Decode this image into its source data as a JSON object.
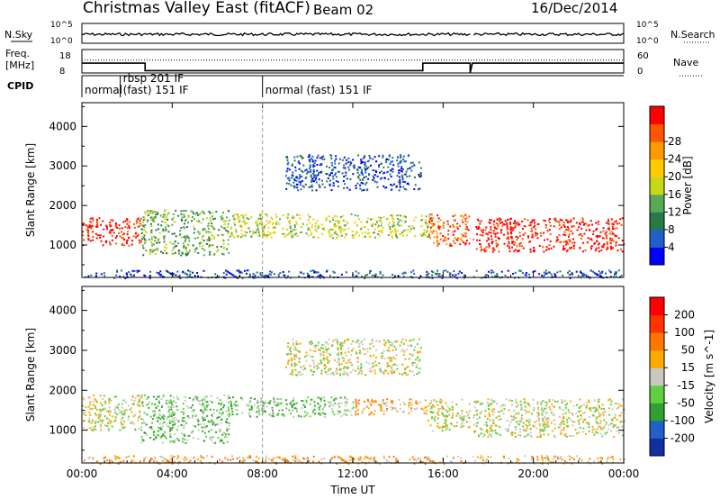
{
  "header": {
    "station": "Christmas Valley East (fitACF)",
    "beam": "Beam 02",
    "date": "16/Dec/2014"
  },
  "strip": {
    "nsky_label": "N.Sky",
    "nsearch_label": "N.Search",
    "freq_label_1": "Freq.",
    "freq_label_2": "[MHz]",
    "nave_label": "Nave",
    "cpid_label": "CPID",
    "nsky_ticks": [
      "10^5",
      "10^0"
    ],
    "nsearch_ticks": [
      "10^5",
      "10^0"
    ],
    "freq_ticks": [
      "18",
      "8"
    ],
    "nave_ticks": [
      "60",
      "0"
    ],
    "cpid_segments": [
      {
        "label": "normal",
        "start_h": 0.0,
        "end_h": 1.7
      },
      {
        "label": "rbsp 201 IF",
        "start_h": 1.7,
        "end_h": 2.5
      },
      {
        "label": "(fast) 151 IF",
        "start_h": 1.7,
        "end_h": 8.0
      },
      {
        "label": "normal (fast) 151 IF",
        "start_h": 8.0,
        "end_h": 24.0
      }
    ],
    "freq_trace": [
      {
        "h": 0.0,
        "mhz": 12.2
      },
      {
        "h": 2.8,
        "mhz": 12.2
      },
      {
        "h": 2.8,
        "mhz": 9.0
      },
      {
        "h": 15.1,
        "mhz": 9.0
      },
      {
        "h": 15.1,
        "mhz": 12.2
      },
      {
        "h": 17.2,
        "mhz": 12.2
      },
      {
        "h": 17.2,
        "mhz": 8.0
      },
      {
        "h": 17.3,
        "mhz": 12.2
      },
      {
        "h": 24.0,
        "mhz": 12.2
      }
    ],
    "nave_level": 33,
    "nsky_level": 0.45
  },
  "chart_data": [
    {
      "type": "heatmap",
      "name": "power-panel",
      "ylabel": "Slant Range [km]",
      "xlabel": "Time UT",
      "xlim": [
        0,
        24
      ],
      "ylim": [
        180,
        4600
      ],
      "yticks": [
        "1000",
        "2000",
        "3000",
        "4000"
      ],
      "xticks": [
        "00:00",
        "04:00",
        "08:00",
        "12:00",
        "16:00",
        "20:00",
        "00:00"
      ],
      "colorbar": {
        "label": "Power [dB]",
        "ticks": [
          "4",
          "8",
          "12",
          "16",
          "20",
          "24",
          "28"
        ],
        "colors": [
          "#0000ff",
          "#2060c8",
          "#287848",
          "#58a858",
          "#c8d818",
          "#ffcc00",
          "#ff9900",
          "#ff5500",
          "#ff0000"
        ]
      },
      "regions": [
        {
          "t0": 0.0,
          "t1": 2.6,
          "r0": 1000,
          "r1": 1700,
          "level": 8
        },
        {
          "t0": 2.6,
          "t1": 6.5,
          "r0": 750,
          "r1": 1900,
          "level": 3
        },
        {
          "t0": 6.5,
          "t1": 15.5,
          "r0": 1200,
          "r1": 1800,
          "level": 4
        },
        {
          "t0": 9.0,
          "t1": 15.0,
          "r0": 2400,
          "r1": 3300,
          "level": 1
        },
        {
          "t0": 15.3,
          "t1": 17.2,
          "r0": 1000,
          "r1": 1800,
          "level": 7
        },
        {
          "t0": 17.3,
          "t1": 24.0,
          "r0": 850,
          "r1": 1700,
          "level": 8
        },
        {
          "t0": 0.0,
          "t1": 24.0,
          "r0": 180,
          "r1": 380,
          "level": 1
        }
      ]
    },
    {
      "type": "heatmap",
      "name": "velocity-panel",
      "ylabel": "Slant Range [km]",
      "xlabel": "Time UT",
      "xlim": [
        0,
        24
      ],
      "ylim": [
        180,
        4600
      ],
      "yticks": [
        "1000",
        "2000",
        "3000",
        "4000"
      ],
      "xticks": [
        "00:00",
        "04:00",
        "08:00",
        "12:00",
        "16:00",
        "20:00",
        "00:00"
      ],
      "colorbar": {
        "label": "Velocity [m s^-1]",
        "ticks": [
          "200",
          "100",
          "50",
          "15",
          "-15",
          "-50",
          "-100",
          "-200"
        ],
        "colors": [
          "#1030a0",
          "#2060c8",
          "#30a030",
          "#60d040",
          "#c8c8c0",
          "#ffaa00",
          "#ff7700",
          "#ff3300",
          "#ff0000"
        ]
      },
      "regions": [
        {
          "t0": 0.0,
          "t1": 2.6,
          "r0": 1000,
          "r1": 1900,
          "level": 4
        },
        {
          "t0": 2.6,
          "t1": 6.5,
          "r0": 700,
          "r1": 1900,
          "level": 3
        },
        {
          "t0": 6.5,
          "t1": 12.0,
          "r0": 1350,
          "r1": 1850,
          "level": 3
        },
        {
          "t0": 12.0,
          "t1": 15.3,
          "r0": 1400,
          "r1": 1800,
          "level": 5
        },
        {
          "t0": 9.0,
          "t1": 15.0,
          "r0": 2400,
          "r1": 3300,
          "level": 4
        },
        {
          "t0": 15.3,
          "t1": 17.2,
          "r0": 1000,
          "r1": 1800,
          "level": 4
        },
        {
          "t0": 17.3,
          "t1": 24.0,
          "r0": 850,
          "r1": 1800,
          "level": 4
        },
        {
          "t0": 0.0,
          "t1": 24.0,
          "r0": 180,
          "r1": 380,
          "level": 5
        }
      ]
    }
  ]
}
